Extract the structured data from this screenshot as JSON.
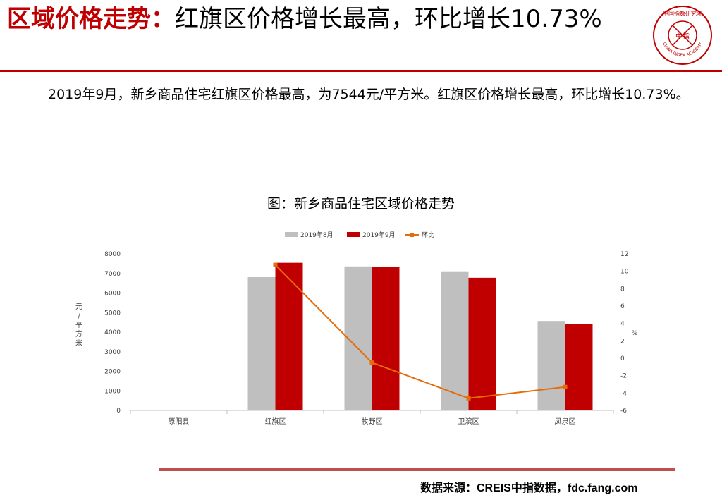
{
  "page": {
    "title_highlight": "区域价格走势：",
    "title_rest": "红旗区价格增长最高，环比增长10.73%",
    "paragraph": "2019年9月，新乡商品住宅红旗区价格最高，为7544元/平方米。红旗区价格增长最高，环比增长10.73%。",
    "source": "数据来源：CREIS中指数据，fdc.fang.com",
    "logo": {
      "icon": "china-index-academy-seal-icon",
      "arc_text": "CHINA INDEX ACADEMY",
      "center_text": "中指",
      "top_text": "中国指数研究院"
    }
  },
  "colors": {
    "accent": "#c00000",
    "series_aug": "#bfbfbf",
    "series_sep": "#c00000",
    "line": "#e46c0a",
    "bottom_rule": "#c0504d"
  },
  "chart_data": {
    "type": "bar",
    "title": "图：新乡商品住宅区域价格走势",
    "categories": [
      "原阳县",
      "红旗区",
      "牧野区",
      "卫滨区",
      "凤泉区"
    ],
    "ylabel": "元/平方米",
    "y2label": "%",
    "ylim": [
      0,
      8000
    ],
    "y_ticks": [
      "0",
      "1000",
      "2000",
      "3000",
      "4000",
      "5000",
      "6000",
      "7000",
      "8000"
    ],
    "y2lim": [
      -6,
      12
    ],
    "y2_ticks": [
      "-6",
      "-4",
      "-2",
      "0",
      "2",
      "4",
      "6",
      "8",
      "10",
      "12"
    ],
    "legend_position": "top",
    "series": [
      {
        "name": "2019年8月",
        "type": "bar",
        "values": [
          null,
          6810,
          7360,
          7110,
          4570
        ]
      },
      {
        "name": "2019年9月",
        "type": "bar",
        "values": [
          null,
          7544,
          7320,
          6780,
          4410
        ]
      },
      {
        "name": "环比",
        "type": "line",
        "axis": "secondary",
        "values": [
          null,
          10.73,
          -0.5,
          -4.6,
          -3.3
        ]
      }
    ]
  }
}
